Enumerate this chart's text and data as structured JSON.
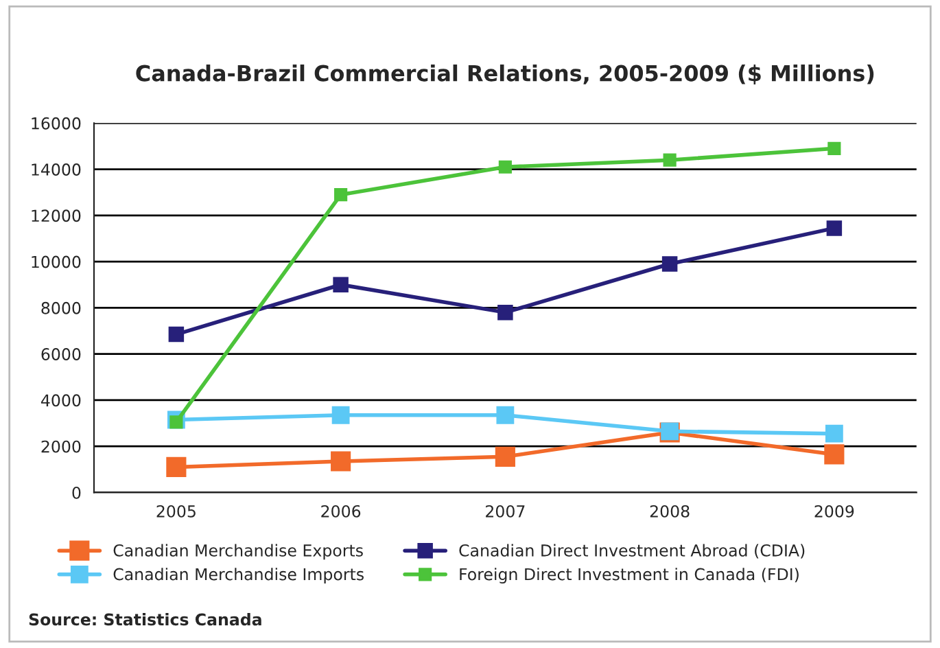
{
  "chart_data": {
    "type": "line",
    "title": "Canada-Brazil Commercial Relations, 2005-2009 ($ Millions)",
    "categories": [
      "2005",
      "2006",
      "2007",
      "2008",
      "2009"
    ],
    "series": [
      {
        "name": "Canadian Merchandise Exports",
        "color": "#f26a2a",
        "values": [
          1100,
          1350,
          1550,
          2600,
          1650
        ]
      },
      {
        "name": "Canadian Merchandise Imports",
        "color": "#5bc8f5",
        "values": [
          3150,
          3350,
          3350,
          2650,
          2550
        ]
      },
      {
        "name": "Canadian Direct Investment Abroad (CDIA)",
        "color": "#27207a",
        "values": [
          6850,
          9000,
          7800,
          9900,
          11450
        ]
      },
      {
        "name": "Foreign Direct Investment in Canada (FDI)",
        "color": "#4cc33a",
        "values": [
          3050,
          12900,
          14100,
          14400,
          14900
        ]
      }
    ],
    "ylim": [
      0,
      16000
    ],
    "yticks": [
      0,
      2000,
      4000,
      6000,
      8000,
      10000,
      12000,
      14000,
      16000
    ],
    "grid": "y",
    "legend": "bottom",
    "marker": "square",
    "line_style": "solid",
    "annotations": [
      "Source: Statistics Canada"
    ]
  }
}
